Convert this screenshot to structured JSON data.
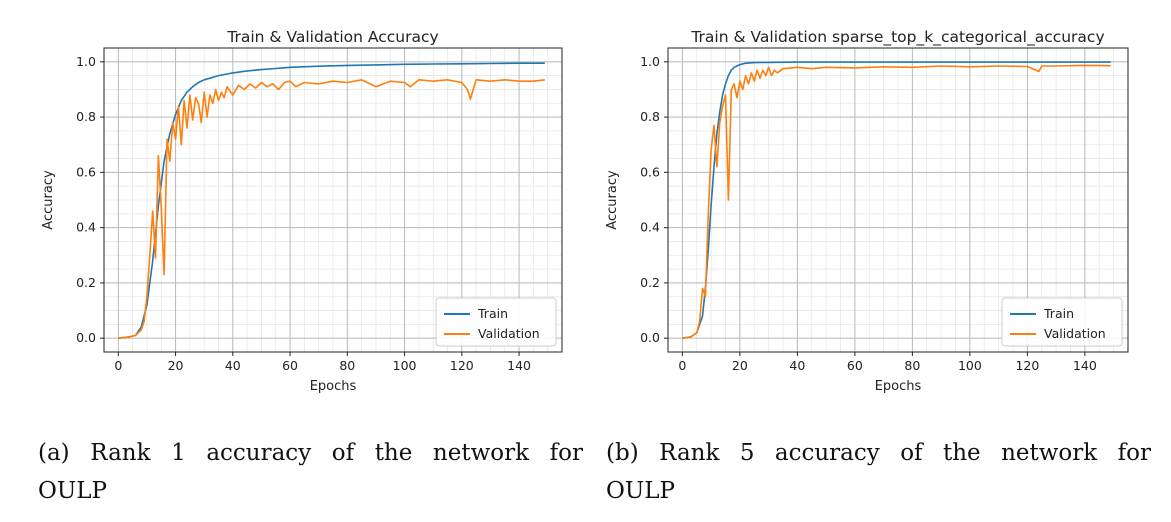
{
  "colors": {
    "train": "#1f77b4",
    "validation": "#ff7f0e"
  },
  "captions": [
    "(a) Rank 1 accuracy of the network for OULP",
    "(b) Rank 5 accuracy of the network for OULP"
  ],
  "chart_data": [
    {
      "type": "line",
      "title": "Train & Validation Accuracy",
      "xlabel": "Epochs",
      "ylabel": "Accuracy",
      "xlim": [
        -5,
        155
      ],
      "ylim": [
        -0.05,
        1.05
      ],
      "xticks": [
        0,
        20,
        40,
        60,
        80,
        100,
        120,
        140
      ],
      "yticks": [
        0.0,
        0.2,
        0.4,
        0.6,
        0.8,
        1.0
      ],
      "grid": true,
      "legend_position": "lower-right",
      "series": [
        {
          "name": "Train",
          "x": [
            0,
            4,
            6,
            8,
            10,
            12,
            14,
            16,
            18,
            20,
            22,
            24,
            26,
            28,
            30,
            35,
            40,
            45,
            50,
            55,
            60,
            70,
            80,
            90,
            100,
            110,
            120,
            130,
            140,
            149
          ],
          "y": [
            0.0,
            0.005,
            0.01,
            0.04,
            0.12,
            0.28,
            0.48,
            0.64,
            0.74,
            0.81,
            0.86,
            0.89,
            0.91,
            0.925,
            0.935,
            0.95,
            0.96,
            0.967,
            0.972,
            0.976,
            0.98,
            0.984,
            0.987,
            0.989,
            0.991,
            0.992,
            0.993,
            0.994,
            0.995,
            0.995
          ]
        },
        {
          "name": "Validation",
          "x": [
            0,
            4,
            6,
            8,
            9,
            10,
            11,
            12,
            13,
            14,
            15,
            16,
            17,
            18,
            19,
            20,
            21,
            22,
            23,
            24,
            25,
            26,
            27,
            28,
            29,
            30,
            31,
            32,
            33,
            34,
            35,
            36,
            37,
            38,
            40,
            42,
            44,
            46,
            48,
            50,
            52,
            54,
            56,
            58,
            60,
            62,
            65,
            70,
            75,
            80,
            85,
            88,
            90,
            95,
            100,
            102,
            105,
            110,
            115,
            120,
            122,
            123,
            125,
            130,
            135,
            140,
            145,
            149
          ],
          "y": [
            0.0,
            0.005,
            0.01,
            0.03,
            0.06,
            0.15,
            0.3,
            0.46,
            0.29,
            0.66,
            0.47,
            0.23,
            0.72,
            0.64,
            0.78,
            0.72,
            0.84,
            0.7,
            0.86,
            0.76,
            0.88,
            0.79,
            0.87,
            0.85,
            0.78,
            0.89,
            0.8,
            0.88,
            0.85,
            0.9,
            0.86,
            0.89,
            0.87,
            0.91,
            0.88,
            0.915,
            0.9,
            0.92,
            0.905,
            0.925,
            0.91,
            0.92,
            0.9,
            0.925,
            0.93,
            0.91,
            0.925,
            0.92,
            0.93,
            0.925,
            0.935,
            0.92,
            0.91,
            0.93,
            0.925,
            0.91,
            0.935,
            0.93,
            0.935,
            0.925,
            0.9,
            0.865,
            0.935,
            0.93,
            0.935,
            0.93,
            0.93,
            0.935
          ]
        }
      ]
    },
    {
      "type": "line",
      "title": "Train & Validation sparse_top_k_categorical_accuracy",
      "xlabel": "Epochs",
      "ylabel": "Accuracy",
      "xlim": [
        -5,
        155
      ],
      "ylim": [
        -0.05,
        1.05
      ],
      "xticks": [
        0,
        20,
        40,
        60,
        80,
        100,
        120,
        140
      ],
      "yticks": [
        0.0,
        0.2,
        0.4,
        0.6,
        0.8,
        1.0
      ],
      "grid": true,
      "legend_position": "lower-right",
      "series": [
        {
          "name": "Train",
          "x": [
            0,
            3,
            5,
            7,
            8,
            9,
            10,
            11,
            12,
            13,
            14,
            15,
            16,
            17,
            18,
            20,
            22,
            25,
            30,
            40,
            60,
            80,
            100,
            120,
            140,
            149
          ],
          "y": [
            0.0,
            0.005,
            0.02,
            0.08,
            0.18,
            0.32,
            0.48,
            0.62,
            0.74,
            0.82,
            0.88,
            0.92,
            0.95,
            0.97,
            0.98,
            0.99,
            0.995,
            0.997,
            0.998,
            0.999,
            0.999,
            0.999,
            0.999,
            0.999,
            0.999,
            0.999
          ]
        },
        {
          "name": "Validation",
          "x": [
            0,
            3,
            5,
            6,
            7,
            8,
            9,
            10,
            11,
            12,
            13,
            14,
            15,
            16,
            17,
            18,
            19,
            20,
            21,
            22,
            23,
            24,
            25,
            26,
            27,
            28,
            29,
            30,
            31,
            32,
            33,
            35,
            40,
            45,
            50,
            60,
            70,
            80,
            90,
            100,
            110,
            120,
            123,
            124,
            125,
            130,
            140,
            149
          ],
          "y": [
            0.0,
            0.005,
            0.02,
            0.06,
            0.18,
            0.15,
            0.45,
            0.68,
            0.77,
            0.62,
            0.78,
            0.84,
            0.88,
            0.5,
            0.9,
            0.92,
            0.87,
            0.93,
            0.9,
            0.95,
            0.92,
            0.96,
            0.93,
            0.97,
            0.94,
            0.97,
            0.95,
            0.98,
            0.95,
            0.97,
            0.96,
            0.975,
            0.98,
            0.975,
            0.98,
            0.978,
            0.982,
            0.98,
            0.985,
            0.982,
            0.985,
            0.983,
            0.97,
            0.965,
            0.985,
            0.985,
            0.987,
            0.986
          ]
        }
      ]
    }
  ]
}
